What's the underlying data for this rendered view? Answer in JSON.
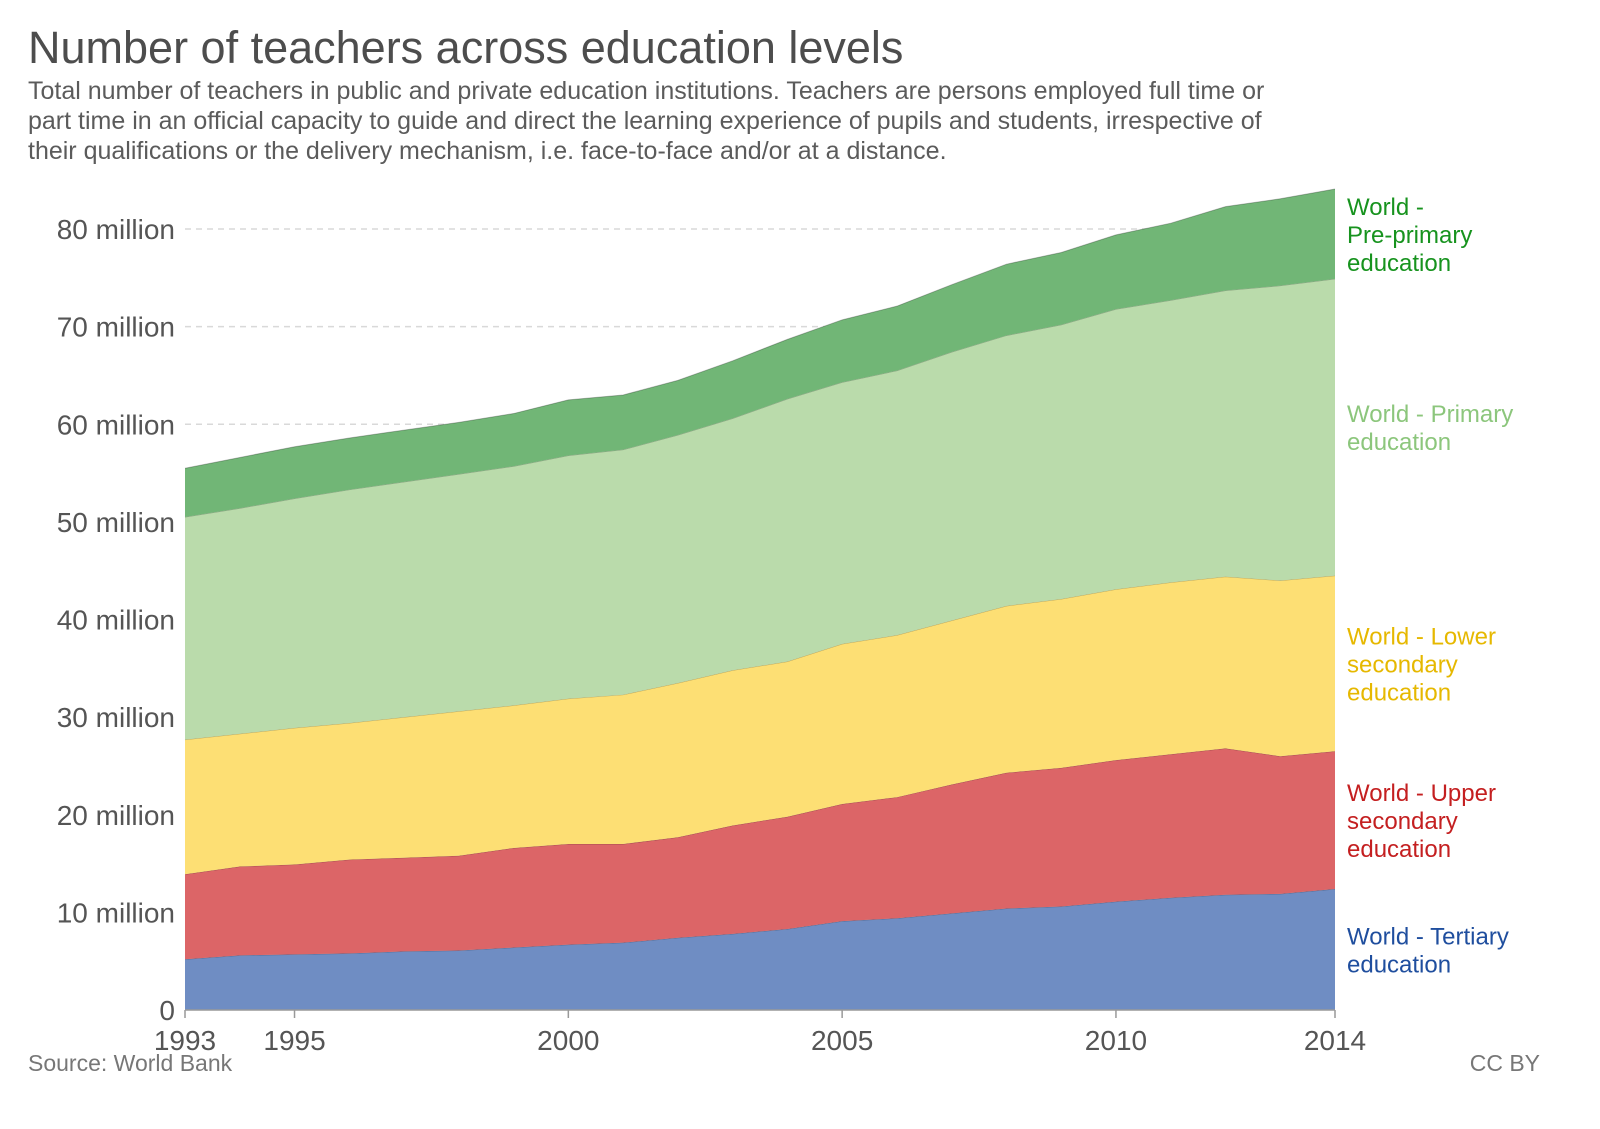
{
  "title": "Number of teachers across education levels",
  "subtitle_lines": [
    "Total number of teachers in public and private education institutions. Teachers are persons employed full time or",
    "part time in an official capacity to guide and direct the learning experience of pupils and students, irrespective of",
    "their qualifications or the delivery mechanism, i.e. face-to-face and/or at a distance."
  ],
  "source": "Source: World Bank",
  "license": "CC BY",
  "chart_data": {
    "type": "area",
    "stacked": true,
    "x": [
      1993,
      1994,
      1995,
      1996,
      1997,
      1998,
      1999,
      2000,
      2001,
      2002,
      2003,
      2004,
      2005,
      2006,
      2007,
      2008,
      2009,
      2010,
      2011,
      2012,
      2013,
      2014
    ],
    "xticks": [
      1993,
      1995,
      2000,
      2005,
      2010,
      2014
    ],
    "yticks": [
      0,
      10,
      20,
      30,
      40,
      50,
      60,
      70,
      80
    ],
    "ytick_labels": [
      "0",
      "10 million",
      "20 million",
      "30 million",
      "40 million",
      "50 million",
      "60 million",
      "70 million",
      "80 million"
    ],
    "ylim": [
      0,
      84
    ],
    "y_unit": "million",
    "grid": true,
    "series": [
      {
        "name": "World - Tertiary education",
        "color": "#6f8dc3",
        "label_color": "#1f4e9e",
        "values": [
          5.2,
          5.6,
          5.7,
          5.8,
          6.0,
          6.1,
          6.4,
          6.7,
          6.9,
          7.4,
          7.8,
          8.3,
          9.1,
          9.4,
          9.9,
          10.4,
          10.6,
          11.1,
          11.5,
          11.8,
          11.9,
          12.4
        ]
      },
      {
        "name": "World - Upper secondary education",
        "color": "#dc6567",
        "label_color": "#c41f20",
        "values": [
          8.7,
          9.1,
          9.2,
          9.6,
          9.6,
          9.7,
          10.2,
          10.3,
          10.1,
          10.3,
          11.1,
          11.5,
          12.0,
          12.4,
          13.2,
          13.9,
          14.2,
          14.5,
          14.7,
          15.0,
          14.1,
          14.1
        ]
      },
      {
        "name": "World - Lower secondary education",
        "color": "#fddf74",
        "label_color": "#e6b800",
        "values": [
          13.8,
          13.6,
          14.0,
          14.0,
          14.4,
          14.8,
          14.6,
          14.9,
          15.3,
          15.8,
          15.9,
          15.9,
          16.4,
          16.6,
          16.8,
          17.1,
          17.3,
          17.5,
          17.6,
          17.6,
          18.0,
          18.0
        ]
      },
      {
        "name": "World - Primary education",
        "color": "#badbab",
        "label_color": "#8cc67c",
        "values": [
          22.8,
          23.1,
          23.5,
          23.9,
          24.1,
          24.3,
          24.5,
          24.9,
          25.1,
          25.4,
          25.8,
          26.9,
          26.8,
          27.1,
          27.5,
          27.7,
          28.1,
          28.7,
          28.9,
          29.3,
          30.2,
          30.4
        ]
      },
      {
        "name": "World - Pre-primary education",
        "color": "#71b676",
        "label_color": "#17931e",
        "values": [
          5.0,
          5.2,
          5.3,
          5.3,
          5.3,
          5.3,
          5.4,
          5.7,
          5.6,
          5.6,
          5.9,
          6.1,
          6.4,
          6.6,
          6.9,
          7.3,
          7.4,
          7.6,
          7.9,
          8.6,
          8.9,
          9.2
        ]
      }
    ],
    "series_label_lines": [
      [
        "World - Tertiary",
        "education"
      ],
      [
        "World - Upper",
        "secondary",
        "education"
      ],
      [
        "World - Lower",
        "secondary",
        "education"
      ],
      [
        "World - Primary",
        "education"
      ],
      [
        "World -",
        "Pre-primary",
        "education"
      ]
    ]
  }
}
